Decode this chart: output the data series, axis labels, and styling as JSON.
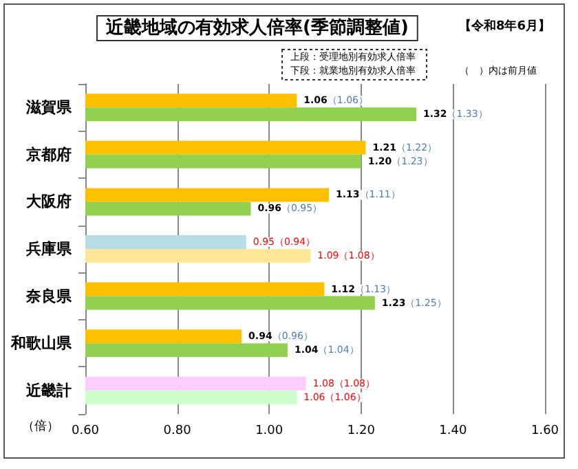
{
  "chart_data": {
    "type": "bar",
    "orientation": "horizontal",
    "title": "近畿地域の有効求人倍率(季節調整値)",
    "xlabel": "（倍）",
    "annotations": [
      "【令和8年6月】",
      "上段：受理地別有効求人倍率",
      "下段：就業地別有効求人倍率",
      "（　）内は前月値"
    ],
    "categories": [
      "滋賀県",
      "京都府",
      "大阪府",
      "兵庫県",
      "奈良県",
      "和歌山県",
      "近畿計"
    ],
    "series": [
      {
        "color": "#ffc000",
        "colors": [
          "#ffc000",
          "#ffc000",
          "#ffc000",
          "#b7dee8",
          "#ffc000",
          "#ffc000",
          "#ffccff"
        ],
        "values": [
          1.06,
          1.21,
          1.13,
          0.95,
          1.12,
          0.94,
          1.08
        ],
        "value_labels": [
          "1.06（1.06）",
          "1.21（1.22）",
          "1.13（1.11）",
          "0.95（0.94）",
          "1.12（1.13）",
          "0.94（0.96）",
          "1.08（1.08）"
        ]
      },
      {
        "color": "#92d050",
        "colors": [
          "#92d050",
          "#92d050",
          "#92d050",
          "#ffe699",
          "#92d050",
          "#92d050",
          "#ccffcc"
        ],
        "values": [
          1.32,
          1.2,
          0.96,
          1.09,
          1.23,
          1.04,
          1.06
        ],
        "value_labels": [
          "1.32（1.33）",
          "1.20（1.23）",
          "0.96（0.95）",
          "1.09（1.08）",
          "1.23（1.25）",
          "1.04（1.04）",
          "1.06（1.06）"
        ]
      }
    ],
    "xlim": [
      0.6,
      1.6
    ],
    "xticks": [
      {
        "value": 0.6,
        "label": "0.60"
      },
      {
        "value": 0.8,
        "label": "0.80"
      },
      {
        "value": 1.0,
        "label": "1.00"
      },
      {
        "value": 1.2,
        "label": "1.20"
      },
      {
        "value": 1.4,
        "label": "1.40"
      },
      {
        "value": 1.6,
        "label": "1.60"
      }
    ],
    "grid": "x"
  }
}
